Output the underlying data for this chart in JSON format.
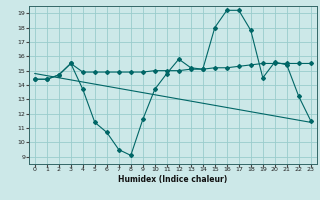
{
  "xlabel": "Humidex (Indice chaleur)",
  "xlim": [
    -0.5,
    23.5
  ],
  "ylim": [
    8.5,
    19.5
  ],
  "yticks": [
    9,
    10,
    11,
    12,
    13,
    14,
    15,
    16,
    17,
    18,
    19
  ],
  "xticks": [
    0,
    1,
    2,
    3,
    4,
    5,
    6,
    7,
    8,
    9,
    10,
    11,
    12,
    13,
    14,
    15,
    16,
    17,
    18,
    19,
    20,
    21,
    22,
    23
  ],
  "bg_color": "#cce8e8",
  "grid_color": "#99cccc",
  "line_color": "#006666",
  "line1_x": [
    0,
    1,
    2,
    3,
    4,
    5,
    6,
    7,
    8,
    9,
    10,
    11,
    12,
    13,
    14,
    15,
    16,
    17,
    18,
    19,
    20,
    21,
    22,
    23
  ],
  "line1_y": [
    14.4,
    14.4,
    14.7,
    15.5,
    13.7,
    11.4,
    10.7,
    9.5,
    9.1,
    11.6,
    13.7,
    14.8,
    15.8,
    15.2,
    15.1,
    18.0,
    19.2,
    19.2,
    17.8,
    14.5,
    15.6,
    15.4,
    13.2,
    11.5
  ],
  "line2_x": [
    0,
    1,
    2,
    3,
    4,
    5,
    6,
    7,
    8,
    9,
    10,
    11,
    12,
    13,
    14,
    15,
    16,
    17,
    18,
    19,
    20,
    21,
    22,
    23
  ],
  "line2_y": [
    14.4,
    14.4,
    14.7,
    15.5,
    14.9,
    14.9,
    14.9,
    14.9,
    14.9,
    14.9,
    15.0,
    15.0,
    15.0,
    15.1,
    15.1,
    15.2,
    15.2,
    15.3,
    15.4,
    15.5,
    15.5,
    15.5,
    15.5,
    15.5
  ],
  "line3_x": [
    0,
    23
  ],
  "line3_y": [
    14.8,
    11.4
  ]
}
